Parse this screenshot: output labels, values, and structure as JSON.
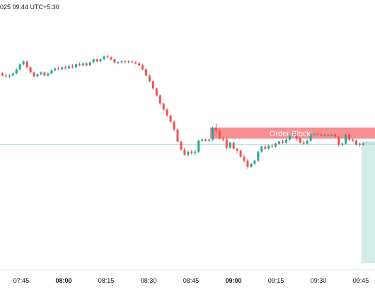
{
  "header": {
    "datetime": "025 09:44 UTC+5:30"
  },
  "colors": {
    "up": "#26a69a",
    "down": "#ef5350",
    "order_block_fill": "#f77c80",
    "order_block_label": "#ffffff",
    "target_zone": "#b2dfdb",
    "stop_zone": "#f7a9ab",
    "price_line": "#b2dfdb",
    "axis_text": "#131722",
    "separator": "#e0e3eb"
  },
  "annotations": {
    "order_block_label": "Order Block"
  },
  "chart_data": {
    "type": "candlestick",
    "interval_minutes": 1,
    "x_ticks": [
      {
        "label": "07:45",
        "bold": false
      },
      {
        "label": "08:00",
        "bold": true
      },
      {
        "label": "08:15",
        "bold": false
      },
      {
        "label": "08:30",
        "bold": false
      },
      {
        "label": "08:45",
        "bold": false
      },
      {
        "label": "09:00",
        "bold": true
      },
      {
        "label": "09:15",
        "bold": false
      },
      {
        "label": "09:30",
        "bold": false
      },
      {
        "label": "09:45",
        "bold": false
      }
    ],
    "candles": [
      [
        79,
        80,
        76,
        77
      ],
      [
        77,
        79,
        75,
        76
      ],
      [
        76,
        78,
        74,
        77
      ],
      [
        77,
        80,
        76,
        79
      ],
      [
        79,
        84,
        78,
        83
      ],
      [
        83,
        89,
        82,
        88
      ],
      [
        88,
        92,
        87,
        91
      ],
      [
        91,
        92,
        84,
        85
      ],
      [
        85,
        86,
        79,
        80
      ],
      [
        80,
        81,
        75,
        76
      ],
      [
        76,
        79,
        75,
        78
      ],
      [
        78,
        81,
        77,
        80
      ],
      [
        80,
        81,
        76,
        77
      ],
      [
        77,
        80,
        76,
        79
      ],
      [
        79,
        83,
        78,
        82
      ],
      [
        82,
        85,
        81,
        84
      ],
      [
        84,
        86,
        82,
        83
      ],
      [
        83,
        86,
        82,
        85
      ],
      [
        85,
        87,
        83,
        84
      ],
      [
        84,
        88,
        83,
        86
      ],
      [
        86,
        88,
        84,
        85
      ],
      [
        85,
        89,
        84,
        88
      ],
      [
        88,
        90,
        86,
        87
      ],
      [
        87,
        90,
        86,
        89
      ],
      [
        89,
        90,
        86,
        87
      ],
      [
        87,
        91,
        86,
        90
      ],
      [
        90,
        94,
        89,
        93
      ],
      [
        93,
        94,
        90,
        91
      ],
      [
        91,
        94,
        90,
        93
      ],
      [
        93,
        97,
        92,
        96
      ],
      [
        96,
        98,
        94,
        95
      ],
      [
        95,
        96,
        92,
        93
      ],
      [
        93,
        94,
        89,
        90
      ],
      [
        90,
        91,
        88,
        90
      ],
      [
        90,
        92,
        89,
        91
      ],
      [
        91,
        92,
        89,
        90
      ],
      [
        90,
        92,
        89,
        91
      ],
      [
        91,
        92,
        89,
        90
      ],
      [
        90,
        91,
        88,
        89
      ],
      [
        89,
        90,
        86,
        87
      ],
      [
        87,
        88,
        82,
        83
      ],
      [
        83,
        84,
        76,
        77
      ],
      [
        77,
        78,
        70,
        71
      ],
      [
        71,
        72,
        63,
        64
      ],
      [
        64,
        65,
        56,
        57
      ],
      [
        57,
        58,
        48,
        49
      ],
      [
        49,
        50,
        42,
        43
      ],
      [
        43,
        44,
        36,
        37
      ],
      [
        37,
        38,
        30,
        31
      ],
      [
        31,
        32,
        22,
        23
      ],
      [
        23,
        24,
        10,
        11
      ],
      [
        11,
        12,
        2,
        3
      ],
      [
        3,
        5,
        -3,
        -2
      ],
      [
        -2,
        2,
        -4,
        1
      ],
      [
        1,
        3,
        -2,
        0
      ],
      [
        0,
        3,
        -3,
        1
      ],
      [
        1,
        13,
        0,
        12
      ],
      [
        12,
        14,
        11,
        13
      ],
      [
        13,
        14,
        11,
        12
      ],
      [
        12,
        14,
        11,
        13
      ],
      [
        13,
        26,
        12,
        25
      ],
      [
        25,
        29,
        20,
        22
      ],
      [
        22,
        24,
        13,
        14
      ],
      [
        14,
        16,
        11,
        13
      ],
      [
        13,
        15,
        3,
        5
      ],
      [
        5,
        11,
        4,
        10
      ],
      [
        10,
        11,
        3,
        4
      ],
      [
        4,
        5,
        0,
        2
      ],
      [
        2,
        3,
        -5,
        -4
      ],
      [
        -4,
        -2,
        -10,
        -8
      ],
      [
        -8,
        -6,
        -16,
        -14
      ],
      [
        -14,
        -10,
        -15,
        -11
      ],
      [
        -11,
        -7,
        -12,
        -8
      ],
      [
        -8,
        2,
        -9,
        1
      ],
      [
        1,
        7,
        0,
        6
      ],
      [
        6,
        8,
        3,
        4
      ],
      [
        4,
        8,
        3,
        7
      ],
      [
        7,
        9,
        5,
        6
      ],
      [
        6,
        10,
        5,
        9
      ],
      [
        9,
        12,
        8,
        11
      ],
      [
        11,
        13,
        9,
        10
      ],
      [
        10,
        14,
        9,
        13
      ],
      [
        13,
        18,
        12,
        17
      ],
      [
        17,
        21,
        16,
        19
      ],
      [
        19,
        20,
        12,
        14
      ],
      [
        14,
        15,
        9,
        10
      ],
      [
        10,
        12,
        8,
        9
      ],
      [
        9,
        13,
        8,
        12
      ],
      [
        12,
        19,
        11,
        18
      ],
      [
        18,
        20,
        16,
        19
      ],
      [
        19,
        21,
        17,
        18
      ],
      [
        18,
        20,
        16,
        17
      ],
      [
        17,
        19,
        16,
        18
      ],
      [
        18,
        19,
        16,
        17
      ],
      [
        17,
        19,
        16,
        18
      ],
      [
        18,
        19,
        15,
        16
      ],
      [
        16,
        17,
        6,
        8
      ],
      [
        8,
        10,
        6,
        9
      ],
      [
        9,
        19,
        8,
        18
      ],
      [
        18,
        19,
        12,
        13
      ],
      [
        13,
        14,
        11,
        12
      ],
      [
        12,
        13,
        7,
        8
      ],
      [
        8,
        10,
        6,
        9
      ],
      [
        9,
        10,
        7,
        8
      ]
    ],
    "order_block": {
      "label": "Order Block",
      "top": 25,
      "bottom": 14,
      "start_index": 60
    },
    "position": {
      "entry": 8,
      "target": 11,
      "stop": -110,
      "start_index": 103
    },
    "price_line": 8
  }
}
